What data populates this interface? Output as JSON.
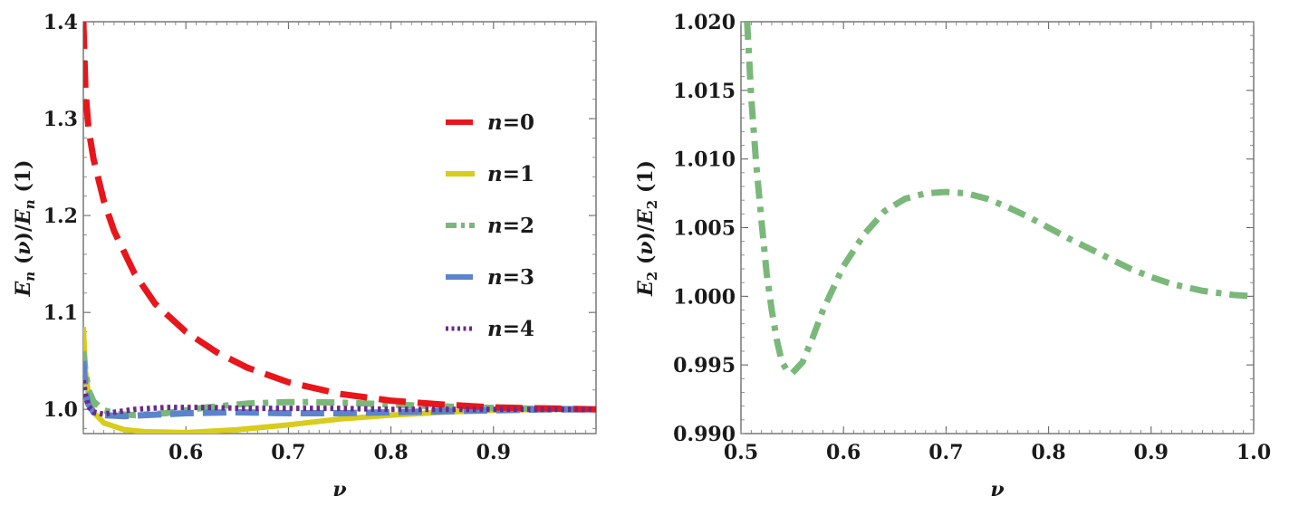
{
  "chart_data": [
    {
      "type": "line",
      "xlabel": "ν",
      "ylabel": "E_n (ν)/E_n (1)",
      "xlim": [
        0.5,
        1.0
      ],
      "ylim": [
        0.975,
        1.4
      ],
      "xticks": [
        0.6,
        0.7,
        0.8,
        0.9
      ],
      "xtick_labels": [
        "0.6",
        "0.7",
        "0.8",
        "0.9"
      ],
      "yticks": [
        1.0,
        1.1,
        1.2,
        1.3,
        1.4
      ],
      "ytick_labels": [
        "1.0",
        "1.1",
        "1.2",
        "1.3",
        "1.4"
      ],
      "legend_position": "right",
      "series": [
        {
          "name": "n=0",
          "legend_var": "n",
          "legend_val": "=0",
          "color": "#e8161b",
          "style": "long-dash",
          "x": [
            0.5,
            0.502,
            0.505,
            0.51,
            0.52,
            0.53,
            0.55,
            0.57,
            0.6,
            0.63,
            0.66,
            0.7,
            0.75,
            0.8,
            0.85,
            0.9,
            0.95,
            1.0
          ],
          "y": [
            1.4,
            1.33,
            1.29,
            1.258,
            1.215,
            1.184,
            1.14,
            1.109,
            1.08,
            1.059,
            1.043,
            1.028,
            1.016,
            1.009,
            1.005,
            1.002,
            1.001,
            1.0
          ]
        },
        {
          "name": "n=1",
          "legend_var": "n",
          "legend_val": "=1",
          "color": "#d8cc1c",
          "style": "solid",
          "x": [
            0.5,
            0.502,
            0.505,
            0.51,
            0.52,
            0.54,
            0.56,
            0.6,
            0.65,
            0.7,
            0.75,
            0.8,
            0.85,
            0.9,
            0.95,
            1.0
          ],
          "y": [
            1.085,
            1.04,
            1.015,
            0.997,
            0.986,
            0.979,
            0.977,
            0.976,
            0.979,
            0.984,
            0.99,
            0.994,
            0.997,
            0.999,
            1.0,
            1.0
          ]
        },
        {
          "name": "n=2",
          "legend_var": "n",
          "legend_val": "=2",
          "color": "#7ab87a",
          "style": "dash-dot",
          "x": [
            0.5,
            0.502,
            0.505,
            0.51,
            0.52,
            0.535,
            0.55,
            0.58,
            0.62,
            0.66,
            0.7,
            0.72,
            0.75,
            0.8,
            0.85,
            0.9,
            0.95,
            1.0
          ],
          "y": [
            1.06,
            1.04,
            1.02,
            1.008,
            0.999,
            0.995,
            0.994,
            0.996,
            1.002,
            1.006,
            1.0075,
            1.0075,
            1.007,
            1.005,
            1.003,
            1.0015,
            1.0005,
            1.0
          ]
        },
        {
          "name": "n=3",
          "legend_var": "n",
          "legend_val": "=3",
          "color": "#5b84cc",
          "style": "dash",
          "x": [
            0.5,
            0.502,
            0.505,
            0.51,
            0.52,
            0.54,
            0.56,
            0.6,
            0.65,
            0.7,
            0.75,
            0.8,
            0.85,
            0.9,
            0.95,
            1.0
          ],
          "y": [
            1.05,
            1.02,
            1.005,
            0.997,
            0.994,
            0.993,
            0.994,
            0.996,
            0.997,
            0.996,
            0.996,
            0.997,
            0.998,
            0.999,
            1.0,
            1.0
          ]
        },
        {
          "name": "n=4",
          "legend_var": "n",
          "legend_val": "=4",
          "color": "#6b2a8a",
          "style": "dotted",
          "x": [
            0.5,
            0.502,
            0.505,
            0.51,
            0.52,
            0.53,
            0.55,
            0.58,
            0.62,
            0.66,
            0.7,
            0.75,
            0.8,
            0.9,
            1.0
          ],
          "y": [
            1.03,
            1.015,
            1.003,
            0.997,
            0.995,
            0.997,
            1.0,
            1.002,
            1.002,
            1.001,
            1.001,
            1.001,
            1.0,
            1.0,
            1.0
          ]
        }
      ]
    },
    {
      "type": "line",
      "xlabel": "ν",
      "ylabel": "E_2 (ν)/E_2 (1)",
      "xlim": [
        0.5,
        1.0
      ],
      "ylim": [
        0.99,
        1.02
      ],
      "xticks": [
        0.5,
        0.6,
        0.7,
        0.8,
        0.9,
        1.0
      ],
      "xtick_labels": [
        "0.5",
        "0.6",
        "0.7",
        "0.8",
        "0.9",
        "1.0"
      ],
      "yticks": [
        0.99,
        0.995,
        1.0,
        1.005,
        1.01,
        1.015,
        1.02
      ],
      "ytick_labels": [
        "0.990",
        "0.995",
        "1.000",
        "1.005",
        "1.010",
        "1.015",
        "1.020"
      ],
      "series": [
        {
          "name": "n=2",
          "color": "#7ab87a",
          "style": "dash-dot",
          "x": [
            0.506,
            0.51,
            0.515,
            0.52,
            0.525,
            0.53,
            0.535,
            0.54,
            0.545,
            0.55,
            0.56,
            0.57,
            0.58,
            0.6,
            0.62,
            0.64,
            0.66,
            0.68,
            0.7,
            0.72,
            0.74,
            0.76,
            0.78,
            0.8,
            0.82,
            0.85,
            0.88,
            0.9,
            0.92,
            0.95,
            0.98,
            1.0
          ],
          "y": [
            1.02,
            1.0145,
            1.0095,
            1.0055,
            1.0017,
            0.999,
            0.9968,
            0.9952,
            0.9946,
            0.9944,
            0.9952,
            0.997,
            0.999,
            1.0022,
            1.0045,
            1.0062,
            1.0071,
            1.0075,
            1.0076,
            1.0075,
            1.0071,
            1.0065,
            1.0058,
            1.005,
            1.0042,
            1.0031,
            1.002,
            1.0014,
            1.0009,
            1.0004,
            1.0001,
            1.0
          ]
        }
      ]
    }
  ]
}
